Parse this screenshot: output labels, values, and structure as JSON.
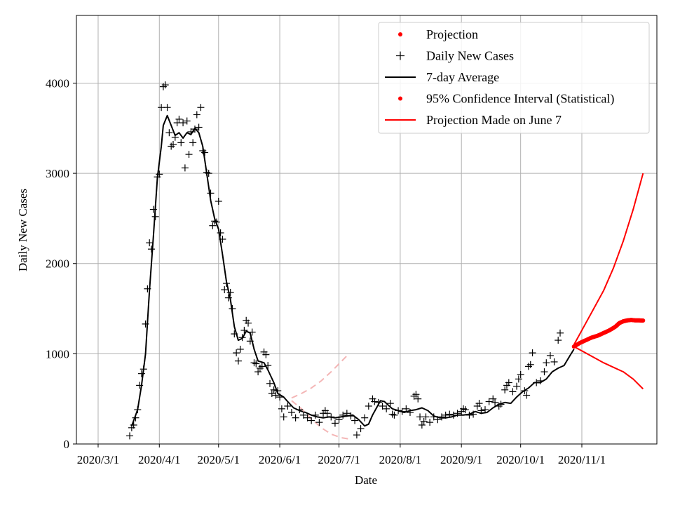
{
  "chart_data": {
    "type": "line",
    "title": "",
    "xlabel": "Date",
    "ylabel": "Daily New Cases",
    "xlim": [
      -11,
      283
    ],
    "ylim": [
      0,
      4750
    ],
    "x_origin_date": "2020-03-01",
    "xticks": [
      {
        "day": 0,
        "label": "2020/3/1"
      },
      {
        "day": 31,
        "label": "2020/4/1"
      },
      {
        "day": 61,
        "label": "2020/5/1"
      },
      {
        "day": 92,
        "label": "2020/6/1"
      },
      {
        "day": 122,
        "label": "2020/7/1"
      },
      {
        "day": 153,
        "label": "2020/8/1"
      },
      {
        "day": 184,
        "label": "2020/9/1"
      },
      {
        "day": 214,
        "label": "2020/10/1"
      },
      {
        "day": 245,
        "label": "2020/11/1"
      }
    ],
    "yticks": [
      0,
      1000,
      2000,
      3000,
      4000
    ],
    "grid": true,
    "legend_position": "top-right",
    "colors": {
      "projection": "#ff0000",
      "daily": "#000000",
      "avg": "#000000",
      "ci_bounds": "#ff0000",
      "old_projection": "#f4b6b6"
    },
    "legend": [
      {
        "label": "Projection",
        "style": "dot"
      },
      {
        "label": "Daily New Cases",
        "style": "plus"
      },
      {
        "label": "7-day Average",
        "style": "line-black"
      },
      {
        "label": "95% Confidence Interval (Statistical)",
        "style": "dot"
      },
      {
        "label": "Projection Made on June 7",
        "style": "line-red"
      }
    ],
    "series": [
      {
        "name": "7-day Average",
        "points": [
          [
            17,
            200
          ],
          [
            20,
            380
          ],
          [
            22,
            650
          ],
          [
            24,
            1000
          ],
          [
            26,
            1700
          ],
          [
            28,
            2300
          ],
          [
            30,
            2950
          ],
          [
            32,
            3300
          ],
          [
            33,
            3530
          ],
          [
            35,
            3640
          ],
          [
            37,
            3530
          ],
          [
            39,
            3420
          ],
          [
            41,
            3450
          ],
          [
            43,
            3390
          ],
          [
            45,
            3450
          ],
          [
            47,
            3430
          ],
          [
            49,
            3500
          ],
          [
            51,
            3450
          ],
          [
            53,
            3300
          ],
          [
            55,
            3000
          ],
          [
            57,
            2700
          ],
          [
            59,
            2500
          ],
          [
            61,
            2380
          ],
          [
            63,
            2100
          ],
          [
            65,
            1800
          ],
          [
            67,
            1600
          ],
          [
            69,
            1300
          ],
          [
            71,
            1150
          ],
          [
            73,
            1170
          ],
          [
            75,
            1250
          ],
          [
            77,
            1230
          ],
          [
            79,
            1050
          ],
          [
            81,
            920
          ],
          [
            84,
            900
          ],
          [
            86,
            820
          ],
          [
            89,
            680
          ],
          [
            91,
            560
          ],
          [
            94,
            520
          ],
          [
            96,
            470
          ],
          [
            99,
            400
          ],
          [
            102,
            370
          ],
          [
            105,
            350
          ],
          [
            108,
            320
          ],
          [
            111,
            300
          ],
          [
            114,
            290
          ],
          [
            117,
            300
          ],
          [
            120,
            290
          ],
          [
            123,
            300
          ],
          [
            126,
            310
          ],
          [
            129,
            320
          ],
          [
            132,
            270
          ],
          [
            135,
            200
          ],
          [
            137,
            220
          ],
          [
            139,
            320
          ],
          [
            141,
            400
          ],
          [
            143,
            480
          ],
          [
            145,
            470
          ],
          [
            147,
            430
          ],
          [
            149,
            390
          ],
          [
            152,
            370
          ],
          [
            155,
            350
          ],
          [
            158,
            370
          ],
          [
            161,
            380
          ],
          [
            164,
            400
          ],
          [
            167,
            370
          ],
          [
            170,
            310
          ],
          [
            173,
            290
          ],
          [
            176,
            290
          ],
          [
            179,
            300
          ],
          [
            182,
            320
          ],
          [
            185,
            320
          ],
          [
            188,
            330
          ],
          [
            191,
            360
          ],
          [
            194,
            340
          ],
          [
            197,
            350
          ],
          [
            200,
            400
          ],
          [
            203,
            440
          ],
          [
            206,
            460
          ],
          [
            209,
            450
          ],
          [
            212,
            520
          ],
          [
            215,
            580
          ],
          [
            218,
            620
          ],
          [
            221,
            680
          ],
          [
            224,
            680
          ],
          [
            227,
            720
          ],
          [
            230,
            800
          ],
          [
            233,
            840
          ],
          [
            236,
            870
          ],
          [
            239,
            980
          ],
          [
            241,
            1050
          ]
        ]
      },
      {
        "name": "Projection",
        "points": [
          [
            241,
            1080
          ],
          [
            244,
            1120
          ],
          [
            247,
            1150
          ],
          [
            250,
            1180
          ],
          [
            253,
            1200
          ],
          [
            256,
            1230
          ],
          [
            259,
            1260
          ],
          [
            262,
            1300
          ],
          [
            264,
            1340
          ],
          [
            266,
            1360
          ],
          [
            268,
            1370
          ],
          [
            270,
            1375
          ],
          [
            272,
            1370
          ],
          [
            274,
            1370
          ],
          [
            276,
            1368
          ]
        ]
      },
      {
        "name": "95% CI Upper",
        "points": [
          [
            241,
            1100
          ],
          [
            246,
            1300
          ],
          [
            251,
            1500
          ],
          [
            256,
            1700
          ],
          [
            261,
            1950
          ],
          [
            266,
            2250
          ],
          [
            271,
            2600
          ],
          [
            276,
            3000
          ]
        ]
      },
      {
        "name": "95% CI Lower",
        "points": [
          [
            241,
            1080
          ],
          [
            246,
            1020
          ],
          [
            251,
            960
          ],
          [
            256,
            900
          ],
          [
            261,
            850
          ],
          [
            266,
            800
          ],
          [
            271,
            720
          ],
          [
            276,
            610
          ]
        ]
      },
      {
        "name": "June 7 Projection (upper)",
        "points": [
          [
            98,
            510
          ],
          [
            103,
            560
          ],
          [
            108,
            620
          ],
          [
            113,
            700
          ],
          [
            118,
            800
          ],
          [
            123,
            910
          ],
          [
            127,
            1000
          ]
        ]
      },
      {
        "name": "June 7 Projection (lower)",
        "points": [
          [
            98,
            480
          ],
          [
            103,
            390
          ],
          [
            108,
            280
          ],
          [
            113,
            180
          ],
          [
            118,
            110
          ],
          [
            123,
            70
          ],
          [
            127,
            55
          ]
        ]
      }
    ],
    "daily_cases": [
      [
        16,
        90
      ],
      [
        17,
        180
      ],
      [
        18,
        210
      ],
      [
        19,
        290
      ],
      [
        20,
        380
      ],
      [
        21,
        650
      ],
      [
        22,
        780
      ],
      [
        23,
        830
      ],
      [
        24,
        1330
      ],
      [
        25,
        1720
      ],
      [
        26,
        2230
      ],
      [
        27,
        2160
      ],
      [
        28,
        2600
      ],
      [
        29,
        2520
      ],
      [
        30,
        2960
      ],
      [
        31,
        2990
      ],
      [
        32,
        3730
      ],
      [
        33,
        3960
      ],
      [
        34,
        3980
      ],
      [
        35,
        3730
      ],
      [
        36,
        3450
      ],
      [
        37,
        3300
      ],
      [
        38,
        3320
      ],
      [
        39,
        3400
      ],
      [
        40,
        3560
      ],
      [
        41,
        3600
      ],
      [
        42,
        3340
      ],
      [
        43,
        3560
      ],
      [
        44,
        3060
      ],
      [
        45,
        3580
      ],
      [
        46,
        3210
      ],
      [
        47,
        3460
      ],
      [
        48,
        3340
      ],
      [
        49,
        3490
      ],
      [
        50,
        3650
      ],
      [
        51,
        3510
      ],
      [
        52,
        3730
      ],
      [
        53,
        3250
      ],
      [
        54,
        3230
      ],
      [
        55,
        3010
      ],
      [
        56,
        3000
      ],
      [
        57,
        2780
      ],
      [
        58,
        2420
      ],
      [
        59,
        2470
      ],
      [
        60,
        2460
      ],
      [
        61,
        2690
      ],
      [
        62,
        2340
      ],
      [
        63,
        2270
      ],
      [
        64,
        1710
      ],
      [
        65,
        1780
      ],
      [
        66,
        1620
      ],
      [
        67,
        1680
      ],
      [
        68,
        1500
      ],
      [
        69,
        1220
      ],
      [
        70,
        1010
      ],
      [
        71,
        920
      ],
      [
        72,
        1050
      ],
      [
        73,
        1180
      ],
      [
        74,
        1260
      ],
      [
        75,
        1370
      ],
      [
        76,
        1340
      ],
      [
        77,
        1140
      ],
      [
        78,
        1240
      ],
      [
        79,
        900
      ],
      [
        80,
        890
      ],
      [
        81,
        800
      ],
      [
        82,
        840
      ],
      [
        83,
        860
      ],
      [
        84,
        1020
      ],
      [
        85,
        990
      ],
      [
        86,
        870
      ],
      [
        87,
        670
      ],
      [
        88,
        560
      ],
      [
        89,
        600
      ],
      [
        90,
        540
      ],
      [
        91,
        590
      ],
      [
        92,
        520
      ],
      [
        93,
        390
      ],
      [
        94,
        300
      ],
      [
        96,
        420
      ],
      [
        98,
        350
      ],
      [
        100,
        290
      ],
      [
        102,
        380
      ],
      [
        104,
        320
      ],
      [
        106,
        290
      ],
      [
        108,
        260
      ],
      [
        110,
        320
      ],
      [
        112,
        240
      ],
      [
        114,
        340
      ],
      [
        115,
        370
      ],
      [
        116,
        340
      ],
      [
        118,
        300
      ],
      [
        120,
        230
      ],
      [
        122,
        270
      ],
      [
        124,
        320
      ],
      [
        126,
        340
      ],
      [
        128,
        310
      ],
      [
        130,
        260
      ],
      [
        131,
        100
      ],
      [
        133,
        170
      ],
      [
        135,
        290
      ],
      [
        137,
        420
      ],
      [
        139,
        500
      ],
      [
        140,
        470
      ],
      [
        142,
        460
      ],
      [
        144,
        420
      ],
      [
        146,
        390
      ],
      [
        148,
        450
      ],
      [
        149,
        330
      ],
      [
        150,
        320
      ],
      [
        152,
        370
      ],
      [
        154,
        360
      ],
      [
        156,
        390
      ],
      [
        158,
        350
      ],
      [
        160,
        530
      ],
      [
        161,
        550
      ],
      [
        162,
        500
      ],
      [
        163,
        300
      ],
      [
        164,
        210
      ],
      [
        165,
        250
      ],
      [
        166,
        300
      ],
      [
        168,
        240
      ],
      [
        170,
        300
      ],
      [
        172,
        270
      ],
      [
        174,
        300
      ],
      [
        176,
        320
      ],
      [
        178,
        330
      ],
      [
        180,
        320
      ],
      [
        182,
        340
      ],
      [
        184,
        360
      ],
      [
        185,
        390
      ],
      [
        186,
        380
      ],
      [
        188,
        320
      ],
      [
        190,
        330
      ],
      [
        192,
        420
      ],
      [
        193,
        450
      ],
      [
        194,
        370
      ],
      [
        196,
        380
      ],
      [
        198,
        470
      ],
      [
        200,
        500
      ],
      [
        201,
        460
      ],
      [
        203,
        420
      ],
      [
        204,
        440
      ],
      [
        206,
        600
      ],
      [
        207,
        650
      ],
      [
        208,
        680
      ],
      [
        210,
        580
      ],
      [
        212,
        640
      ],
      [
        213,
        720
      ],
      [
        214,
        770
      ],
      [
        216,
        590
      ],
      [
        217,
        540
      ],
      [
        218,
        860
      ],
      [
        219,
        880
      ],
      [
        220,
        1010
      ],
      [
        222,
        680
      ],
      [
        224,
        700
      ],
      [
        226,
        800
      ],
      [
        227,
        900
      ],
      [
        229,
        980
      ],
      [
        231,
        910
      ],
      [
        233,
        1150
      ],
      [
        234,
        1230
      ]
    ]
  }
}
